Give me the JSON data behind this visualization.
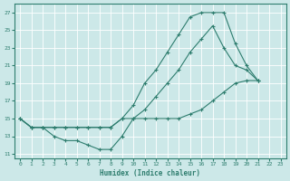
{
  "xlabel": "Humidex (Indice chaleur)",
  "bg_color": "#cce8e8",
  "line_color": "#2e7d6e",
  "grid_color": "#ffffff",
  "xlim": [
    -0.5,
    23.5
  ],
  "ylim": [
    10.5,
    28
  ],
  "yticks": [
    11,
    13,
    15,
    17,
    19,
    21,
    23,
    25,
    27
  ],
  "xticks": [
    0,
    1,
    2,
    3,
    4,
    5,
    6,
    7,
    8,
    9,
    10,
    11,
    12,
    13,
    14,
    15,
    16,
    17,
    18,
    19,
    20,
    21,
    22,
    23
  ],
  "c1x": [
    0,
    1,
    2,
    3,
    4,
    5,
    6,
    7,
    8,
    9,
    10,
    11,
    12,
    13,
    14,
    15,
    16,
    17,
    18,
    19,
    20,
    21
  ],
  "c1y": [
    15,
    14,
    14,
    13,
    12.5,
    12.5,
    12,
    11.5,
    11.5,
    13,
    15,
    15,
    15,
    15,
    15,
    15.5,
    16,
    17,
    18,
    19,
    19.3,
    19.3
  ],
  "c2x": [
    0,
    1,
    2,
    3,
    4,
    5,
    6,
    7,
    8,
    9,
    10,
    11,
    12,
    13,
    14,
    15,
    16,
    17,
    18,
    19,
    20,
    21
  ],
  "c2y": [
    15,
    14,
    14,
    14,
    14,
    14,
    14,
    14,
    14,
    15,
    15,
    16,
    17.5,
    19,
    20.5,
    22.5,
    24,
    25.5,
    23,
    21,
    20.5,
    19.3
  ],
  "c3x": [
    0,
    1,
    2,
    3,
    4,
    5,
    6,
    7,
    8,
    9,
    10,
    11,
    12,
    13,
    14,
    15,
    16,
    17,
    18,
    19,
    20,
    21
  ],
  "c3y": [
    15,
    14,
    14,
    14,
    14,
    14,
    14,
    14,
    14,
    15,
    16.5,
    19,
    20.5,
    22.5,
    24.5,
    26.5,
    27,
    27,
    27,
    23.5,
    21,
    19.3
  ]
}
